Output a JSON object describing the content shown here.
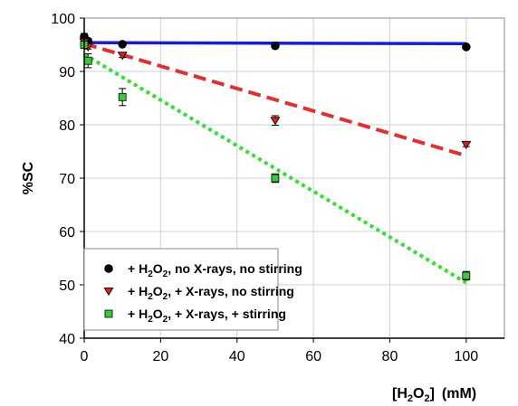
{
  "chart_data": {
    "type": "scatter",
    "title": "",
    "xlabel": {
      "prefix": "[H",
      "sub1": "2",
      "mid": "O",
      "sub2": "2",
      "suffix": "]",
      "unit": "(mM)"
    },
    "ylabel": "%SC",
    "xlim": [
      0,
      110
    ],
    "ylim": [
      40,
      100
    ],
    "xticks": [
      "0",
      "20",
      "40",
      "60",
      "80",
      "100"
    ],
    "yticks": [
      "40",
      "50",
      "60",
      "70",
      "80",
      "90",
      "100"
    ],
    "grid": true,
    "legend_position": "bottom-left",
    "series": [
      {
        "legend": {
          "prefix": "+ H",
          "sub1": "2",
          "mid": "O",
          "sub2": "2",
          "suffix": ", no X-rays, no stirring"
        },
        "marker": "circle",
        "color": "#000000",
        "points": [
          {
            "x": 0,
            "y": 96.5,
            "err": 0.6
          },
          {
            "x": 1,
            "y": 95.7,
            "err": 0.4
          },
          {
            "x": 10,
            "y": 95.1,
            "err": 0.3
          },
          {
            "x": 50,
            "y": 94.8,
            "err": 0.3
          },
          {
            "x": 100,
            "y": 94.6,
            "err": 0.3
          }
        ],
        "fit": {
          "x": [
            0,
            100
          ],
          "y": [
            95.4,
            95.2
          ],
          "color": "#1a1adb",
          "style": "solid"
        }
      },
      {
        "legend": {
          "prefix": "+ H",
          "sub1": "2",
          "mid": "O",
          "sub2": "2",
          "suffix": ", + X-rays, no stirring"
        },
        "marker": "triangle-down",
        "color": "#d42020",
        "points": [
          {
            "x": 0,
            "y": 95.5,
            "err": 0.5
          },
          {
            "x": 1,
            "y": 94.6,
            "err": 0.4
          },
          {
            "x": 10,
            "y": 93.0,
            "err": 0.4
          },
          {
            "x": 50,
            "y": 80.8,
            "err": 0.9
          },
          {
            "x": 100,
            "y": 76.3,
            "err": 0.4
          }
        ],
        "fit": {
          "x": [
            0,
            100
          ],
          "y": [
            95.2,
            74.2
          ],
          "color": "#e03030",
          "style": "dashed"
        }
      },
      {
        "legend": {
          "prefix": "+ H",
          "sub1": "2",
          "mid": "O",
          "sub2": "2",
          "suffix": ", + X-rays, + stirring"
        },
        "marker": "square",
        "color": "#3cc83c",
        "points": [
          {
            "x": 0,
            "y": 95.0,
            "err": 0.6
          },
          {
            "x": 1,
            "y": 92.0,
            "err": 1.3
          },
          {
            "x": 10,
            "y": 85.2,
            "err": 1.6
          },
          {
            "x": 50,
            "y": 70.0,
            "err": 0.8
          },
          {
            "x": 100,
            "y": 51.7,
            "err": 0.8
          }
        ],
        "fit": {
          "x": [
            0,
            100
          ],
          "y": [
            93.2,
            50.4
          ],
          "color": "#33e033",
          "style": "dotted"
        }
      }
    ]
  }
}
